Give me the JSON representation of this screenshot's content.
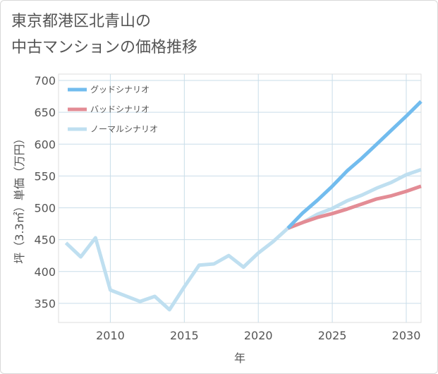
{
  "title": "東京都港区北青山の\n中古マンションの価格推移",
  "chart_data": {
    "type": "line",
    "xlabel": "年",
    "ylabel": "坪（3.3㎡）単価（万円）",
    "xlim": [
      2006.5,
      2031
    ],
    "ylim": [
      320,
      710
    ],
    "xticks": [
      2010,
      2015,
      2020,
      2025,
      2030
    ],
    "yticks": [
      350,
      400,
      450,
      500,
      550,
      600,
      650,
      700
    ],
    "grid": true,
    "legend": "top-left",
    "series": [
      {
        "name": "グッドシナリオ",
        "color": "#72bcee",
        "x": [
          2022,
          2023,
          2024,
          2025,
          2026,
          2027,
          2028,
          2029,
          2030,
          2031
        ],
        "y": [
          468,
          492,
          512,
          534,
          558,
          578,
          600,
          622,
          644,
          667
        ]
      },
      {
        "name": "バッドシナリオ",
        "color": "#e38c95",
        "x": [
          2022,
          2023,
          2024,
          2025,
          2026,
          2027,
          2028,
          2029,
          2030,
          2031
        ],
        "y": [
          468,
          477,
          485,
          491,
          498,
          506,
          514,
          519,
          526,
          534
        ]
      },
      {
        "name": "ノーマルシナリオ",
        "color": "#bfdff0",
        "x": [
          2007,
          2008,
          2009,
          2010,
          2011,
          2012,
          2013,
          2014,
          2015,
          2016,
          2017,
          2018,
          2019,
          2020,
          2021,
          2022,
          2023,
          2024,
          2025,
          2026,
          2027,
          2028,
          2029,
          2030,
          2031
        ],
        "y": [
          445,
          423,
          453,
          371,
          362,
          353,
          361,
          340,
          376,
          410,
          412,
          425,
          407,
          429,
          447,
          468,
          477,
          490,
          499,
          511,
          520,
          531,
          540,
          552,
          560
        ]
      }
    ]
  }
}
